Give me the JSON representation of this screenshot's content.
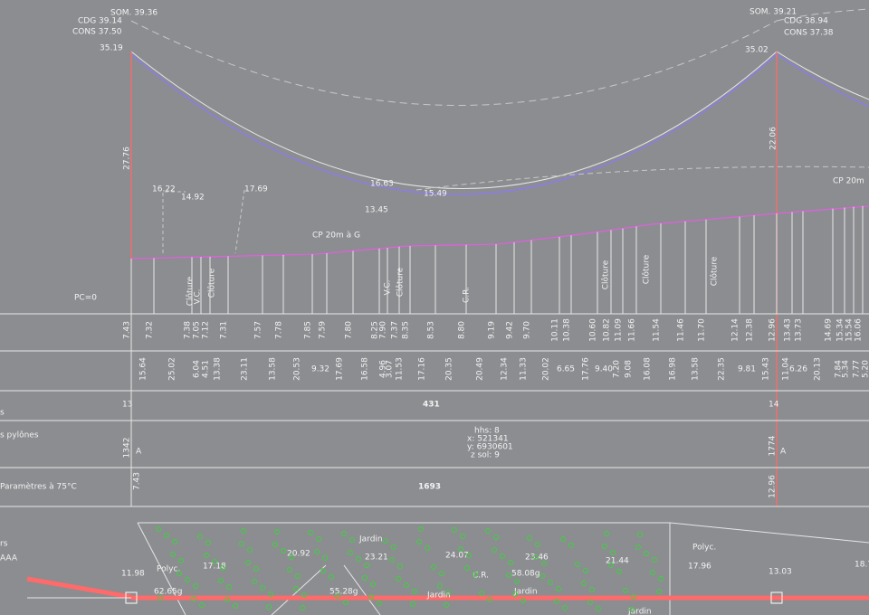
{
  "profile": {
    "left_pylon": {
      "som": "SOM. 39.36",
      "cdg": "CDG 39.14",
      "cons": "CONS 37.50",
      "attach": "35.19",
      "height": "27.76"
    },
    "right_pylon": {
      "som": "SOM. 39.21",
      "cdg": "CDG 38.94",
      "cons": "CONS 37.38",
      "attach": "35.02",
      "height": "22.06"
    },
    "labels": [
      "16.22",
      "14.92",
      "17.69",
      "16.63",
      "15.49",
      "13.45",
      "CP 20m à G",
      "CP 20m"
    ],
    "crossings": [
      "Clôture",
      "V.C.",
      "Clôture",
      "V.C.",
      "Clôture",
      "C.R.",
      "Clôture",
      "Clôture",
      "Clôture"
    ],
    "origin": "PC=0"
  },
  "altitudes": [
    "7.43",
    "7.32",
    "7.38",
    "7.05",
    "7.12",
    "7.31",
    "7.57",
    "7.78",
    "7.85",
    "7.59",
    "7.80",
    "8.25",
    "7.90",
    "7.37",
    "8.35",
    "8.53",
    "8.80",
    "9.19",
    "9.42",
    "9.70",
    "10.11",
    "10.38",
    "10.60",
    "10.82",
    "11.09",
    "11.66",
    "11.54",
    "11.46",
    "11.70",
    "12.14",
    "12.38",
    "12.96",
    "13.43",
    "13.73",
    "14.69",
    "15.34",
    "15.54",
    "16.06"
  ],
  "distances": [
    "15.64",
    "25.02",
    "6.04",
    "4.51",
    "13.38",
    "23.11",
    "13.58",
    "20.53",
    "9.32",
    "17.69",
    "16.58",
    "4.96",
    "3.07",
    "11.53",
    "17.16",
    "20.35",
    "20.49",
    "12.34",
    "11.33",
    "20.02",
    "6.65",
    "17.76",
    "9.40",
    "7.20",
    "9.08",
    "16.08",
    "16.98",
    "13.58",
    "22.35",
    "9.81",
    "15.43",
    "11.04",
    "6.26",
    "20.13",
    "7.84",
    "5.34",
    "7.77",
    "5.20"
  ],
  "rows": {
    "numbers": {
      "label": "s",
      "left": "13",
      "span": "431",
      "right": "14"
    },
    "pylons": {
      "label": "s pylônes",
      "left_id": "1342",
      "left_type": "A",
      "info": [
        "hhs: 8",
        "x: 521341",
        "y: 6930601",
        "z sol: 9"
      ],
      "right_id": "1774",
      "right_type": "A"
    },
    "params": {
      "label": "Paramètres à 75°C",
      "left": "7.43",
      "span": "1693",
      "right": "12.96"
    }
  },
  "map": {
    "legend": [
      "rs",
      "AAA"
    ],
    "labels": [
      "11.98",
      "Polyc.",
      "17.18",
      "20.92",
      "Jardin",
      "23.21",
      "24.07",
      "23.46",
      "21.44",
      "Polyc.",
      "17.96",
      "13.03",
      "18.7",
      "62.65g",
      "55.28g",
      "58.08g",
      "Jardin",
      "C.R.",
      "Jardin",
      "Jardin"
    ]
  }
}
